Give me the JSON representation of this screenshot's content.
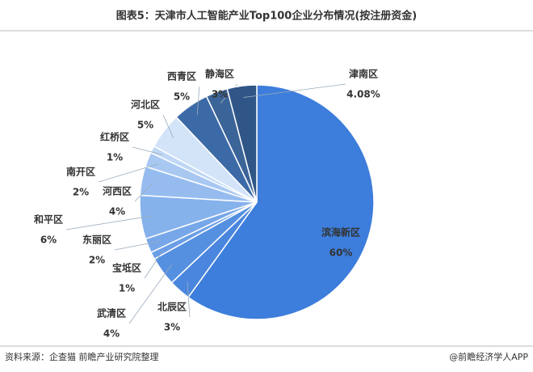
{
  "chart_data": {
    "type": "pie",
    "title": "图表5：天津市人工智能产业Top100企业分布情况(按注册资金)",
    "categories": [
      "滨海新区",
      "北辰区",
      "武清区",
      "宝坻区",
      "东丽区",
      "和平区",
      "河西区",
      "南开区",
      "红桥区",
      "河北区",
      "西青区",
      "静海区",
      "津南区"
    ],
    "values": [
      60,
      3,
      4,
      1,
      2,
      6,
      4,
      2,
      1,
      5,
      5,
      3,
      4.08
    ],
    "value_labels": [
      "60%",
      "3%",
      "4%",
      "1%",
      "2%",
      "6%",
      "4%",
      "2%",
      "1%",
      "5%",
      "5%",
      "3%",
      "4.08%"
    ],
    "colors": [
      "#3d7ddb",
      "#4a86dd",
      "#5590e0",
      "#6a9ee6",
      "#77a7e8",
      "#86b2ec",
      "#96bcef",
      "#a8c8f2",
      "#c0d8f6",
      "#d3e4f9",
      "#3c6aa6",
      "#3b6498",
      "#2f5687"
    ]
  },
  "footer": {
    "source": "资料来源：企查猫 前瞻产业研究院整理",
    "credit": "@前瞻经济学人APP"
  }
}
